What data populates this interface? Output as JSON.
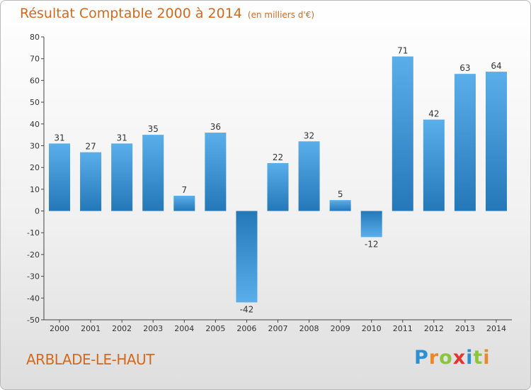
{
  "chart_data": {
    "type": "bar",
    "title": "Résultat Comptable 2000 à 2014",
    "unit_note": "(en milliers d'€)",
    "categories": [
      "2000",
      "2001",
      "2002",
      "2003",
      "2004",
      "2005",
      "2006",
      "2007",
      "2008",
      "2009",
      "2010",
      "2011",
      "2012",
      "2013",
      "2014"
    ],
    "values": [
      31,
      27,
      31,
      35,
      7,
      36,
      -42,
      22,
      32,
      5,
      -12,
      71,
      42,
      63,
      64
    ],
    "ylim": [
      -50,
      80
    ],
    "yticks": [
      80,
      70,
      60,
      50,
      40,
      30,
      20,
      10,
      0,
      -10,
      -20,
      -30,
      -40,
      -50
    ],
    "xlabel": "",
    "ylabel": "",
    "grid": false,
    "legend": "none"
  },
  "commune": "ARBLADE-LE-HAUT",
  "brand": {
    "name": "Proxiti",
    "letters": [
      "P",
      "r",
      "o",
      "x",
      "i",
      "t",
      "i"
    ],
    "colors": [
      "#2a8fd4",
      "#e8892b",
      "#8bc540",
      "#e2362f",
      "#2a8fd4",
      "#8bc540",
      "#e8892b"
    ]
  },
  "colors": {
    "title": "#d2691e",
    "bar_light": "#5aaeea",
    "bar_dark": "#2478b8"
  }
}
